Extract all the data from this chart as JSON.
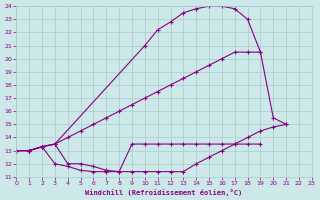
{
  "xlabel": "Windchill (Refroidissement éolien,°C)",
  "xlim": [
    0,
    23
  ],
  "ylim": [
    11,
    24
  ],
  "yticks": [
    11,
    12,
    13,
    14,
    15,
    16,
    17,
    18,
    19,
    20,
    21,
    22,
    23,
    24
  ],
  "xticks": [
    0,
    1,
    2,
    3,
    4,
    5,
    6,
    7,
    8,
    9,
    10,
    11,
    12,
    13,
    14,
    15,
    16,
    17,
    18,
    19,
    20,
    21,
    22,
    23
  ],
  "bg_color": "#cce8e8",
  "line_color": "#880088",
  "grid_color": "#aacccc",
  "lines": [
    {
      "x": [
        0,
        1,
        2,
        3,
        10,
        11,
        12,
        13,
        14,
        15,
        16,
        17,
        18,
        19,
        20,
        21,
        22,
        23
      ],
      "y": [
        13.0,
        13.0,
        13.3,
        13.5,
        21.0,
        22.2,
        22.8,
        23.5,
        23.8,
        24.0,
        24.0,
        23.8,
        23.0,
        20.5,
        15.5,
        15.0,
        null,
        null
      ]
    },
    {
      "x": [
        0,
        1,
        2,
        3,
        4,
        5,
        6,
        7,
        8,
        9,
        10,
        11,
        12,
        13,
        14,
        15,
        16,
        17,
        18,
        19,
        20,
        21,
        22,
        23
      ],
      "y": [
        13.0,
        13.0,
        13.3,
        13.5,
        14.0,
        14.5,
        15.0,
        15.5,
        16.0,
        16.5,
        17.0,
        17.5,
        18.0,
        18.5,
        19.0,
        19.5,
        20.0,
        20.5,
        20.5,
        20.5,
        null,
        null,
        null,
        null
      ]
    },
    {
      "x": [
        0,
        1,
        2,
        3,
        4,
        5,
        6,
        7,
        8,
        9,
        10,
        11,
        12,
        13,
        14,
        15,
        16,
        17,
        18,
        19,
        20,
        21,
        22,
        23
      ],
      "y": [
        13.0,
        13.0,
        13.3,
        13.5,
        12.0,
        12.0,
        11.8,
        11.5,
        11.4,
        11.4,
        11.4,
        11.4,
        11.4,
        11.4,
        12.0,
        12.5,
        13.0,
        13.5,
        14.0,
        14.5,
        14.8,
        15.0,
        null,
        null
      ]
    },
    {
      "x": [
        0,
        1,
        2,
        3,
        4,
        5,
        6,
        7,
        8,
        9,
        10,
        11,
        12,
        13,
        14,
        15,
        16,
        17,
        18,
        19,
        20,
        21,
        22,
        23
      ],
      "y": [
        13.0,
        13.0,
        13.3,
        12.0,
        11.8,
        11.5,
        11.4,
        11.4,
        11.4,
        13.5,
        13.5,
        13.5,
        13.5,
        13.5,
        13.5,
        13.5,
        13.5,
        13.5,
        13.5,
        13.5,
        null,
        null,
        null,
        null
      ]
    }
  ]
}
